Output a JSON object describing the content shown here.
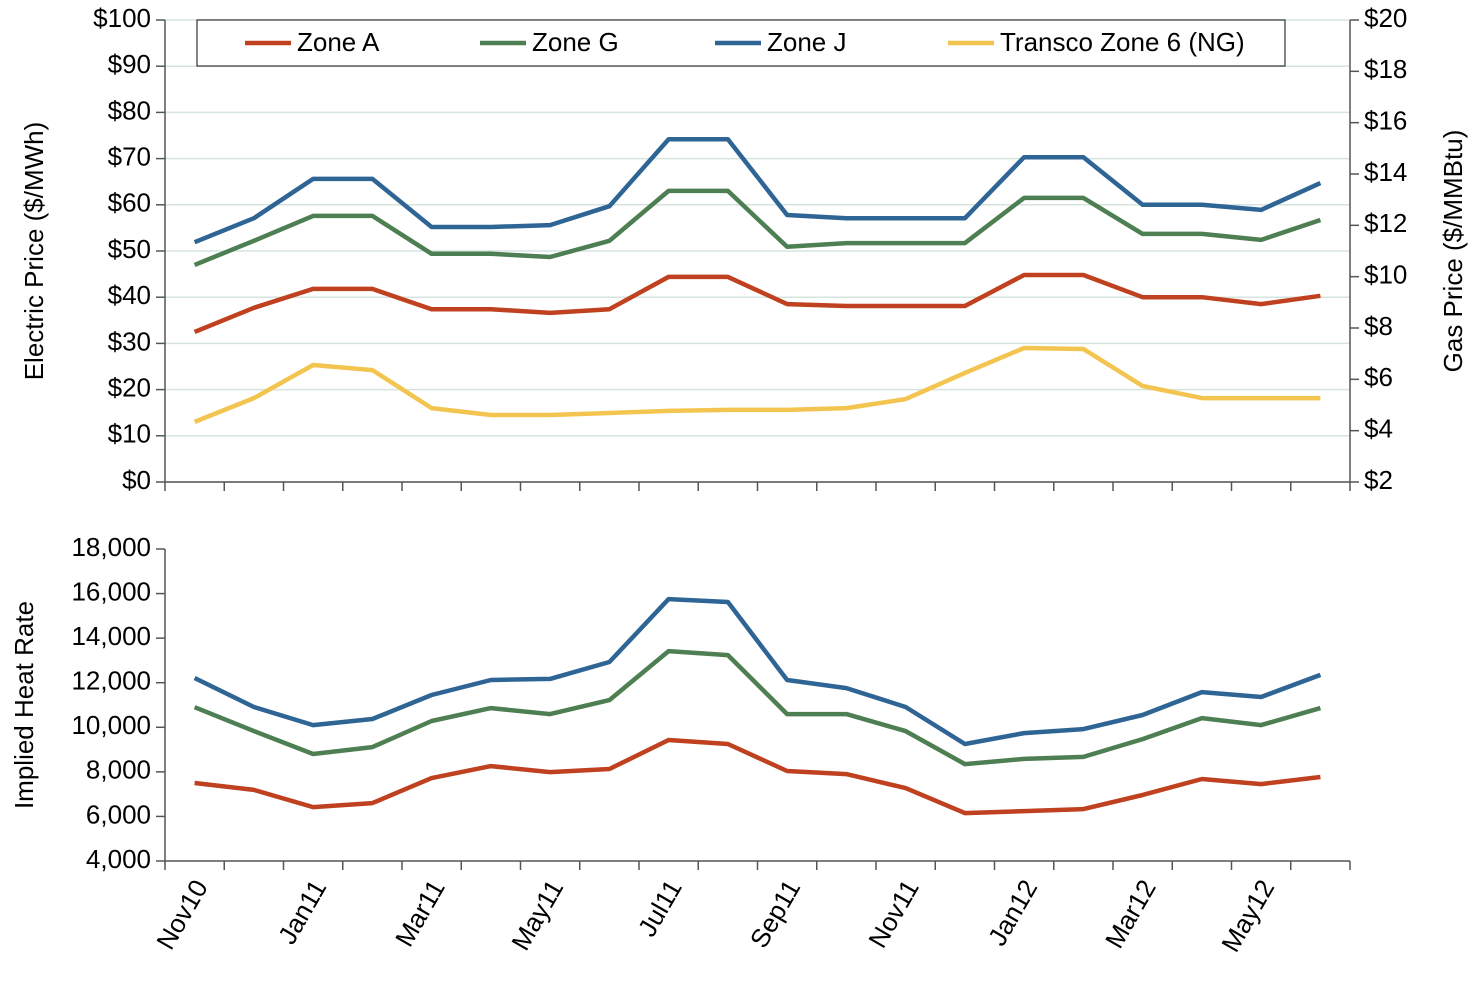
{
  "chart_data": [
    {
      "type": "line",
      "ylabel": "Electric Price ($/MWh)",
      "y2label": "Gas Price ($/MMBtu)",
      "ylim": [
        0,
        100
      ],
      "yticks": [
        {
          "value": 0,
          "label": "$0"
        },
        {
          "value": 10,
          "label": "$10"
        },
        {
          "value": 20,
          "label": "$20"
        },
        {
          "value": 30,
          "label": "$30"
        },
        {
          "value": 40,
          "label": "$40"
        },
        {
          "value": 50,
          "label": "$50"
        },
        {
          "value": 60,
          "label": "$60"
        },
        {
          "value": 70,
          "label": "$70"
        },
        {
          "value": 80,
          "label": "$80"
        },
        {
          "value": 90,
          "label": "$90"
        },
        {
          "value": 100,
          "label": "$100"
        }
      ],
      "y2lim": [
        2,
        20
      ],
      "y2ticks": [
        {
          "value": 2,
          "label": "$2"
        },
        {
          "value": 4,
          "label": "$4"
        },
        {
          "value": 6,
          "label": "$6"
        },
        {
          "value": 8,
          "label": "$8"
        },
        {
          "value": 10,
          "label": "$10"
        },
        {
          "value": 12,
          "label": "$12"
        },
        {
          "value": 14,
          "label": "$14"
        },
        {
          "value": 16,
          "label": "$16"
        },
        {
          "value": 18,
          "label": "$18"
        },
        {
          "value": 20,
          "label": "$20"
        }
      ],
      "grid": true,
      "legend": "top",
      "series": [
        {
          "name": "Zone A",
          "color": "#c0411f",
          "values": [
            32.5,
            37.7,
            41.8,
            41.8,
            37.4,
            37.4,
            36.6,
            37.4,
            44.4,
            44.4,
            38.5,
            38.1,
            38.1,
            38.1,
            44.8,
            44.8,
            40,
            40,
            38.5,
            40.3
          ]
        },
        {
          "name": "Zone G",
          "color": "#4e7f52",
          "values": [
            47,
            52.2,
            57.6,
            57.6,
            49.4,
            49.4,
            48.7,
            52.2,
            63,
            63,
            50.9,
            51.7,
            51.7,
            51.7,
            61.5,
            61.5,
            53.7,
            53.7,
            52.4,
            56.7
          ]
        },
        {
          "name": "Zone J",
          "color": "#2f6595",
          "values": [
            51.9,
            57.1,
            65.6,
            65.6,
            55.2,
            55.2,
            55.6,
            59.7,
            74.2,
            74.2,
            57.8,
            57.1,
            57.1,
            57.1,
            70.3,
            70.3,
            60,
            60,
            58.9,
            64.7
          ]
        },
        {
          "name": "Transco Zone 6 (NG)",
          "color": "#f3c550",
          "axis": "y2",
          "values": [
            4.34,
            5.27,
            6.56,
            6.36,
            4.88,
            4.61,
            4.61,
            4.69,
            4.77,
            4.81,
            4.81,
            4.88,
            5.23,
            6.25,
            7.22,
            7.18,
            5.74,
            5.27,
            5.27,
            5.27
          ]
        }
      ]
    },
    {
      "type": "line",
      "ylabel": "Implied Heat Rate",
      "categories": [
        "Nov10",
        null,
        "Jan11",
        null,
        "Mar11",
        null,
        "May11",
        null,
        "Jul11",
        null,
        "Sep11",
        null,
        "Nov11",
        null,
        "Jan12",
        null,
        "Mar12",
        null,
        "May12",
        null
      ],
      "ylim": [
        4000,
        18000
      ],
      "yticks": [
        {
          "value": 4000,
          "label": "4,000"
        },
        {
          "value": 6000,
          "label": "6,000"
        },
        {
          "value": 8000,
          "label": "8,000"
        },
        {
          "value": 10000,
          "label": "10,000"
        },
        {
          "value": 12000,
          "label": "12,000"
        },
        {
          "value": 14000,
          "label": "14,000"
        },
        {
          "value": 16000,
          "label": "16,000"
        },
        {
          "value": 18000,
          "label": "18,000"
        }
      ],
      "grid": false,
      "series": [
        {
          "name": "Zone A",
          "color": "#c0411f",
          "values": [
            7500,
            7190,
            6420,
            6600,
            7720,
            8260,
            7990,
            8130,
            9430,
            9250,
            8040,
            7900,
            7270,
            6150,
            6240,
            6330,
            6960,
            7680,
            7450,
            7770
          ]
        },
        {
          "name": "Zone G",
          "color": "#4e7f52",
          "values": [
            10900,
            9830,
            8800,
            9110,
            10280,
            10860,
            10590,
            11220,
            13420,
            13240,
            10590,
            10590,
            9830,
            8350,
            8580,
            8670,
            9470,
            10410,
            10100,
            10860
          ]
        },
        {
          "name": "Zone J",
          "color": "#2f6595",
          "values": [
            12210,
            10910,
            10100,
            10370,
            11450,
            12120,
            12170,
            12930,
            15750,
            15620,
            12120,
            11760,
            10910,
            9250,
            9740,
            9920,
            10550,
            11580,
            11360,
            12350
          ]
        }
      ]
    }
  ]
}
